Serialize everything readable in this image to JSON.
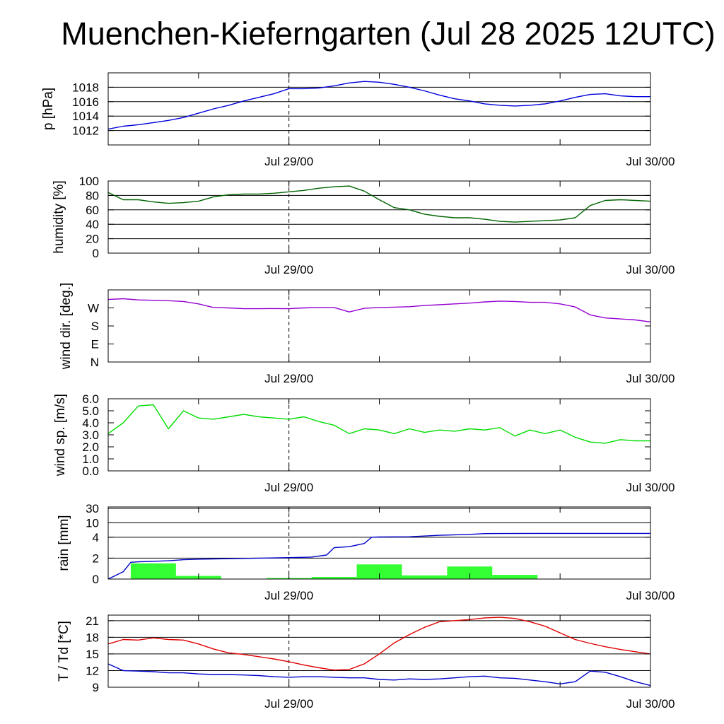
{
  "title": "Muenchen-Kieferngarten (Jul 28 2025 12UTC)",
  "colors": {
    "pressure": "#0000dd",
    "humidity": "#006400",
    "wind_dir": "#9400d3",
    "wind_speed": "#00dd00",
    "rain_total": "#0000cc",
    "rain_bars": "#33ff33",
    "temperature": "#e00000",
    "dewpoint": "#0000cc"
  },
  "chart_data": [
    {
      "type": "line",
      "ylabel": "p [hPa]",
      "ylim": [
        1010,
        1020
      ],
      "yticks": [
        1012,
        1014,
        1016,
        1018
      ],
      "x_ticks": [
        "Jul 29/00",
        "Jul 30/00"
      ],
      "grid": true,
      "x": [
        0,
        1,
        2,
        3,
        4,
        5,
        6,
        7,
        8,
        9,
        10,
        11,
        12,
        13,
        14,
        15,
        16,
        17,
        18,
        19,
        20,
        21,
        22,
        23,
        24,
        25,
        26,
        27,
        28,
        29,
        30,
        31,
        32,
        33,
        34,
        35,
        36
      ],
      "series": [
        {
          "values": [
            1012.2,
            1012.6,
            1012.8,
            1013.1,
            1013.4,
            1013.8,
            1014.4,
            1015.0,
            1015.5,
            1016.1,
            1016.6,
            1017.1,
            1017.8,
            1017.8,
            1017.9,
            1018.2,
            1018.6,
            1018.8,
            1018.7,
            1018.4,
            1018.0,
            1017.5,
            1016.9,
            1016.4,
            1016.1,
            1015.7,
            1015.5,
            1015.4,
            1015.5,
            1015.7,
            1016.1,
            1016.6,
            1017.0,
            1017.1,
            1016.8,
            1016.7,
            1016.7
          ]
        }
      ]
    },
    {
      "type": "line",
      "ylabel": "humidity [%]",
      "ylim": [
        0,
        100
      ],
      "yticks": [
        0,
        20,
        40,
        60,
        80,
        100
      ],
      "x_ticks": [
        "Jul 29/00",
        "Jul 30/00"
      ],
      "grid": true,
      "x": [
        0,
        1,
        2,
        3,
        4,
        5,
        6,
        7,
        8,
        9,
        10,
        11,
        12,
        13,
        14,
        15,
        16,
        17,
        18,
        19,
        20,
        21,
        22,
        23,
        24,
        25,
        26,
        27,
        28,
        29,
        30,
        31,
        32,
        33,
        34,
        35,
        36
      ],
      "series": [
        {
          "values": [
            84,
            74,
            74,
            71,
            69,
            70,
            72,
            78,
            81,
            82,
            82,
            83,
            85,
            87,
            90,
            92,
            93,
            86,
            74,
            63,
            60,
            54,
            51,
            49,
            49,
            47,
            44,
            43,
            44,
            45,
            46,
            49,
            66,
            73,
            74,
            73,
            72
          ]
        }
      ]
    },
    {
      "type": "line",
      "ylabel": "wind dir. [deg.]",
      "ylim": [
        0,
        360
      ],
      "yticks": [
        0,
        90,
        180,
        270
      ],
      "ytick_labels": [
        "N",
        "E",
        "S",
        "W"
      ],
      "x_ticks": [
        "Jul 29/00",
        "Jul 30/00"
      ],
      "grid": false,
      "x": [
        0,
        1,
        2,
        3,
        4,
        5,
        6,
        7,
        8,
        9,
        10,
        11,
        12,
        13,
        14,
        15,
        16,
        17,
        18,
        19,
        20,
        21,
        22,
        23,
        24,
        25,
        26,
        27,
        28,
        29,
        30,
        31,
        32,
        33,
        34,
        35,
        36
      ],
      "series": [
        {
          "values": [
            312,
            316,
            310,
            308,
            306,
            302,
            290,
            272,
            270,
            266,
            266,
            267,
            266,
            270,
            272,
            272,
            250,
            268,
            272,
            274,
            276,
            282,
            286,
            290,
            294,
            300,
            304,
            302,
            298,
            298,
            290,
            275,
            235,
            220,
            215,
            210,
            200
          ]
        }
      ]
    },
    {
      "type": "line",
      "ylabel": "wind sp. [m/s]",
      "ylim": [
        0,
        6
      ],
      "yticks": [
        0.0,
        1.0,
        2.0,
        3.0,
        4.0,
        5.0,
        6.0
      ],
      "x_ticks": [
        "Jul 29/00",
        "Jul 30/00"
      ],
      "grid": false,
      "x": [
        0,
        1,
        2,
        3,
        4,
        5,
        6,
        7,
        8,
        9,
        10,
        11,
        12,
        13,
        14,
        15,
        16,
        17,
        18,
        19,
        20,
        21,
        22,
        23,
        24,
        25,
        26,
        27,
        28,
        29,
        30,
        31,
        32,
        33,
        34,
        35,
        36
      ],
      "series": [
        {
          "values": [
            3.1,
            4.0,
            5.4,
            5.5,
            3.5,
            5.0,
            4.4,
            4.3,
            4.5,
            4.7,
            4.5,
            4.4,
            4.3,
            4.5,
            4.1,
            3.8,
            3.1,
            3.5,
            3.4,
            3.1,
            3.5,
            3.2,
            3.4,
            3.3,
            3.5,
            3.4,
            3.6,
            2.9,
            3.4,
            3.1,
            3.4,
            2.8,
            2.4,
            2.3,
            2.6,
            2.5,
            2.5
          ]
        }
      ]
    },
    {
      "type": "bar",
      "ylabel": "rain [mm]",
      "ylim": [
        0,
        30
      ],
      "yticks": [
        0,
        2,
        4,
        10,
        30
      ],
      "y_scale": "nonlinear",
      "x_ticks": [
        "Jul 29/00",
        "Jul 30/00"
      ],
      "grid": true,
      "bars": {
        "x_start": [
          1.5,
          4.5,
          7.5,
          10.5,
          13.5,
          16.5,
          19.5,
          22.5,
          25.5,
          28.5,
          31.5,
          34.5
        ],
        "width": 3,
        "values": [
          1.5,
          0.3,
          0.0,
          0.1,
          0.2,
          1.4,
          0.35,
          1.2,
          0.4,
          0.0,
          0.0,
          0.0
        ]
      },
      "series": [
        {
          "x": [
            0,
            1,
            1.5,
            2,
            3,
            4,
            5,
            6,
            8,
            10,
            12,
            13.5,
            14.5,
            15,
            16,
            17,
            17.5,
            18,
            20,
            22,
            24,
            25,
            26,
            30,
            36
          ],
          "values": [
            0,
            0.7,
            1.6,
            1.65,
            1.7,
            1.75,
            1.85,
            1.9,
            1.95,
            2.0,
            2.05,
            2.1,
            2.3,
            3.0,
            3.1,
            3.4,
            4.0,
            4.1,
            4.2,
            4.8,
            5.2,
            5.5,
            5.55,
            5.6,
            5.6
          ]
        }
      ]
    },
    {
      "type": "line",
      "ylabel": "T / Td [*C]",
      "ylim": [
        9,
        22
      ],
      "yticks": [
        9,
        12,
        15,
        18,
        21
      ],
      "x_ticks": [
        "Jul 29/00",
        "Jul 30/00"
      ],
      "grid": true,
      "x": [
        0,
        1,
        2,
        3,
        4,
        5,
        6,
        7,
        8,
        9,
        10,
        11,
        12,
        13,
        14,
        15,
        16,
        17,
        18,
        19,
        20,
        21,
        22,
        23,
        24,
        25,
        26,
        27,
        28,
        29,
        30,
        31,
        32,
        33,
        34,
        35,
        36
      ],
      "series": [
        {
          "values": [
            16.8,
            17.6,
            17.5,
            17.9,
            17.6,
            17.5,
            16.8,
            15.9,
            15.2,
            14.9,
            14.5,
            14.1,
            13.6,
            13.0,
            12.5,
            12.1,
            12.2,
            13.2,
            15.0,
            17.0,
            18.5,
            19.8,
            20.8,
            21.0,
            21.2,
            21.5,
            21.6,
            21.4,
            20.8,
            20.0,
            18.8,
            17.6,
            16.9,
            16.3,
            15.8,
            15.4,
            15.0
          ]
        },
        {
          "values": [
            13.2,
            12.0,
            11.9,
            11.8,
            11.6,
            11.6,
            11.4,
            11.3,
            11.3,
            11.2,
            11.1,
            10.9,
            10.8,
            10.9,
            10.9,
            10.8,
            10.7,
            10.7,
            10.4,
            10.3,
            10.5,
            10.4,
            10.5,
            10.7,
            10.9,
            11.0,
            10.7,
            10.6,
            10.3,
            10.0,
            9.6,
            10.0,
            11.9,
            11.7,
            10.9,
            10.0,
            9.3
          ]
        }
      ]
    }
  ]
}
